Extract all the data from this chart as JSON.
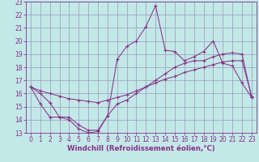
{
  "xlabel": "Windchill (Refroidissement éolien,°C)",
  "xlim": [
    -0.5,
    23.5
  ],
  "ylim": [
    13,
    23
  ],
  "xticks": [
    0,
    1,
    2,
    3,
    4,
    5,
    6,
    7,
    8,
    9,
    10,
    11,
    12,
    13,
    14,
    15,
    16,
    17,
    18,
    19,
    20,
    21,
    22,
    23
  ],
  "yticks": [
    13,
    14,
    15,
    16,
    17,
    18,
    19,
    20,
    21,
    22,
    23
  ],
  "bg_color": "#c2e8e8",
  "line_color": "#883388",
  "grid_color": "#9999bb",
  "line1_x": [
    0,
    1,
    2,
    3,
    4,
    5,
    6,
    7,
    8,
    9,
    10,
    11,
    12,
    13,
    14,
    15,
    16,
    17,
    18,
    19,
    20,
    21,
    22,
    23
  ],
  "line1_y": [
    16.5,
    16.0,
    15.3,
    14.2,
    14.2,
    13.6,
    13.2,
    13.2,
    14.3,
    18.6,
    19.6,
    20.0,
    21.1,
    22.7,
    19.3,
    19.2,
    18.5,
    18.8,
    19.2,
    20.0,
    18.3,
    18.1,
    16.8,
    15.7
  ],
  "line2_x": [
    0,
    1,
    2,
    3,
    4,
    5,
    6,
    7,
    8,
    9,
    10,
    11,
    12,
    13,
    14,
    15,
    16,
    17,
    18,
    19,
    20,
    21,
    22,
    23
  ],
  "line2_y": [
    16.5,
    16.2,
    16.0,
    15.8,
    15.6,
    15.5,
    15.4,
    15.3,
    15.5,
    15.7,
    15.9,
    16.2,
    16.5,
    16.8,
    17.1,
    17.3,
    17.6,
    17.8,
    18.0,
    18.2,
    18.4,
    18.5,
    18.5,
    15.8
  ],
  "line3_x": [
    0,
    1,
    2,
    3,
    4,
    5,
    6,
    7,
    8,
    9,
    10,
    11,
    12,
    13,
    14,
    15,
    16,
    17,
    18,
    19,
    20,
    21,
    22,
    23
  ],
  "line3_y": [
    16.5,
    15.2,
    14.2,
    14.2,
    14.0,
    13.3,
    13.0,
    13.1,
    14.3,
    15.2,
    15.5,
    16.0,
    16.5,
    17.0,
    17.5,
    18.0,
    18.3,
    18.5,
    18.5,
    18.8,
    19.0,
    19.1,
    19.0,
    15.7
  ],
  "tick_fontsize": 5.5,
  "xlabel_fontsize": 6.2
}
